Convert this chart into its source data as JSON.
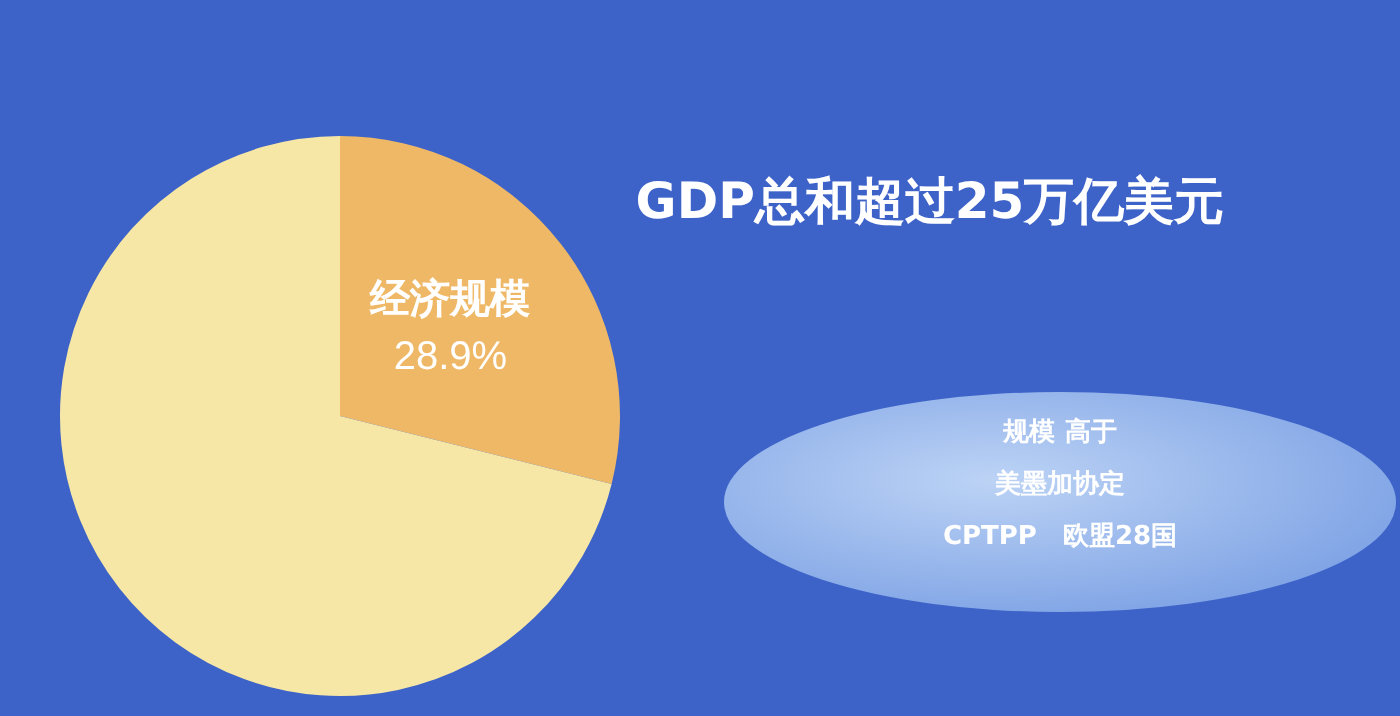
{
  "chart_data": {
    "type": "pie",
    "title": "GDP总和超过25万亿美元",
    "categories": [
      "经济规模",
      null
    ],
    "values": [
      28.9,
      71.1
    ],
    "colors": [
      "#efb867",
      "#f6e7a6"
    ],
    "value_labels": [
      "28.9%",
      null
    ],
    "legend": false,
    "annotations": [
      "规模 高于",
      "美墨加协定",
      "CPTPP　欧盟28国"
    ]
  }
}
